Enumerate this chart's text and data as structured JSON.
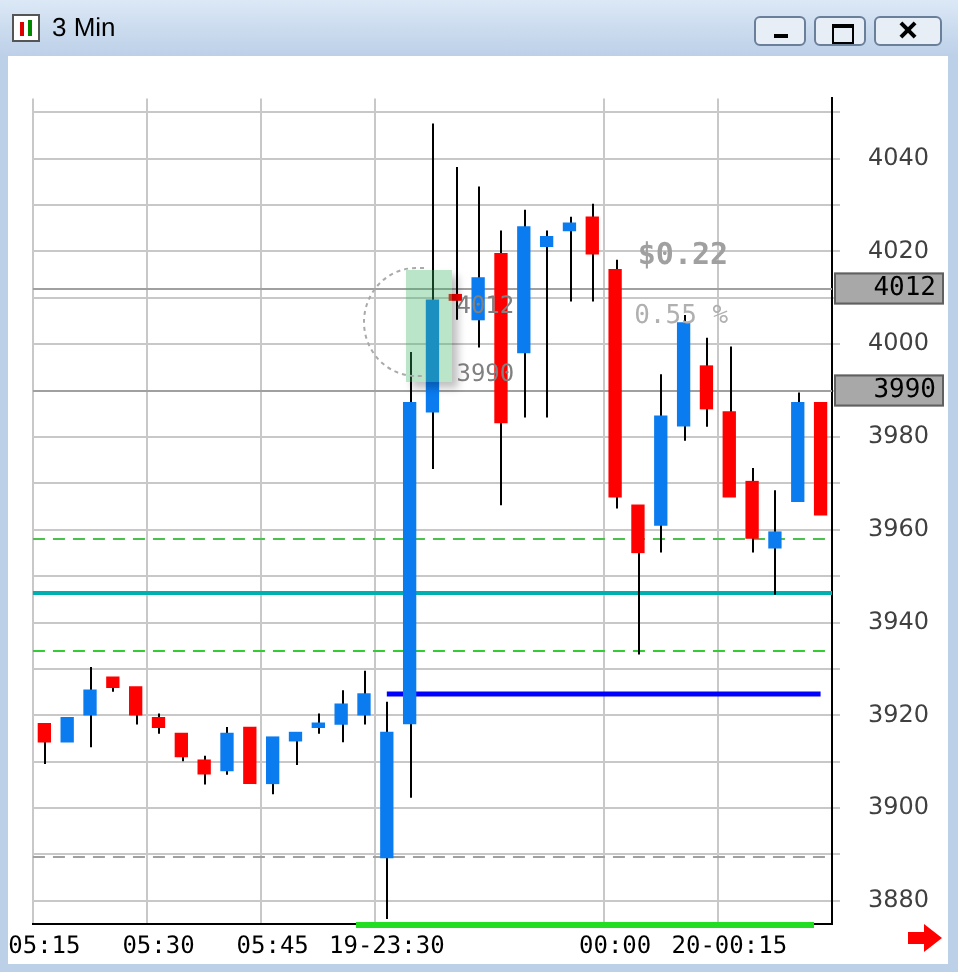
{
  "chart_data": {
    "type": "candlestick",
    "title": "3 Min",
    "categories": [
      "05:15",
      null,
      null,
      null,
      null,
      "05:30",
      null,
      null,
      null,
      null,
      "05:45",
      null,
      null,
      null,
      null,
      "19-23:30",
      null,
      null,
      null,
      null,
      null,
      null,
      null,
      null,
      null,
      "00:00",
      null,
      null,
      null,
      null,
      "20-00:15",
      null,
      null,
      null,
      null
    ],
    "ohlc": [
      [
        3918.2,
        3918.2,
        3909.5,
        3914.3
      ],
      [
        3914.3,
        3919.5,
        3914.3,
        3919.5
      ],
      [
        3920.1,
        3930.4,
        3913.1,
        3925.4
      ],
      [
        3928.2,
        3928.2,
        3925.1,
        3926.0
      ],
      [
        3926.1,
        3926.1,
        3918.0,
        3920.1
      ],
      [
        3919.5,
        3920.4,
        3916.0,
        3917.4
      ],
      [
        3916.1,
        3916.1,
        3910.1,
        3911.1
      ],
      [
        3910.3,
        3911.3,
        3905.1,
        3907.4
      ],
      [
        3908.1,
        3917.5,
        3907.2,
        3916.1
      ],
      [
        3917.4,
        3917.4,
        3905.3,
        3905.3
      ],
      [
        3905.3,
        3915.3,
        3903.0,
        3915.3
      ],
      [
        3914.5,
        3916.3,
        3909.3,
        3916.3
      ],
      [
        3917.4,
        3920.4,
        3916.0,
        3918.3
      ],
      [
        3918.1,
        3925.4,
        3914.2,
        3922.4
      ],
      [
        3920.1,
        3929.6,
        3918.0,
        3924.6
      ],
      [
        3889.3,
        3922.9,
        3876.1,
        3916.3
      ],
      [
        3918.2,
        3998.3,
        3902.2,
        3987.4
      ],
      [
        3985.4,
        4047.6,
        3973.1,
        4009.5
      ],
      [
        4010.7,
        4038.2,
        4005.3,
        4009.5
      ],
      [
        4005.3,
        4034.0,
        3999.3,
        4014.3
      ],
      [
        4019.5,
        4024.5,
        3965.3,
        3983.1
      ],
      [
        3998.2,
        4029.0,
        3984.2,
        4025.3
      ],
      [
        4021.1,
        4024.5,
        3984.2,
        4023.2
      ],
      [
        4024.5,
        4027.5,
        4009.2,
        4026.1
      ],
      [
        4027.4,
        4030.3,
        4009.2,
        4019.5
      ],
      [
        4016.1,
        4018.2,
        3964.6,
        3967.1
      ],
      [
        3965.3,
        3965.3,
        3933.1,
        3955.1
      ],
      [
        3961.0,
        3993.5,
        3955.1,
        3984.5
      ],
      [
        3982.4,
        4006.3,
        3979.2,
        4004.6
      ],
      [
        3995.3,
        4001.4,
        3982.2,
        3986.1
      ],
      [
        3985.4,
        3999.5,
        3967.1,
        3967.1
      ],
      [
        3970.4,
        3973.3,
        3955.1,
        3958.2
      ],
      [
        3956.1,
        3968.5,
        3946.0,
        3959.5
      ],
      [
        3966.1,
        3989.6,
        3966.1,
        3987.4
      ],
      [
        3987.4,
        3987.4,
        3963.2,
        3963.2
      ]
    ],
    "colors": [
      "#ff0000",
      "#0a7cf0",
      "#0a7cf0",
      "#ff0000",
      "#ff0000",
      "#ff0000",
      "#ff0000",
      "#ff0000",
      "#0a7cf0",
      "#ff0000",
      "#0a7cf0",
      "#0a7cf0",
      "#0a7cf0",
      "#0a7cf0",
      "#0a7cf0",
      "#0a7cf0",
      "#0a7cf0",
      "#0a7cf0",
      "#ff0000",
      "#0a7cf0",
      "#ff0000",
      "#0a7cf0",
      "#0a7cf0",
      "#0a7cf0",
      "#ff0000",
      "#ff0000",
      "#ff0000",
      "#0a7cf0",
      "#0a7cf0",
      "#ff0000",
      "#ff0000",
      "#ff0000",
      "#0a7cf0",
      "#0a7cf0",
      "#ff0000"
    ],
    "series": [
      {
        "type": "line",
        "color": "#0000ff",
        "values": [
          null,
          null,
          null,
          null,
          null,
          null,
          null,
          null,
          null,
          null,
          null,
          null,
          null,
          null,
          null,
          3924.6,
          3924.6,
          3924.6,
          3924.6,
          3924.6,
          3924.6,
          3924.6,
          3924.6,
          3924.6,
          3924.6,
          3924.6,
          3924.6,
          3924.6,
          3924.6,
          3924.6,
          3924.6,
          3924.6,
          3924.6,
          3924.6,
          3924.6
        ]
      }
    ],
    "ylim": [
      3875,
      4053
    ],
    "yticks": [
      3880,
      {
        "value": 3890,
        "label": null
      },
      3900,
      {
        "value": 3910,
        "label": null
      },
      3920,
      {
        "value": 3930,
        "label": null
      },
      3940,
      {
        "value": 3950,
        "label": null
      },
      3960,
      {
        "value": 3970,
        "label": null
      },
      3980,
      {
        "value": 3990,
        "label": null
      },
      4000,
      {
        "value": 4010,
        "label": null
      },
      4020,
      {
        "value": 4030,
        "label": null
      },
      4040,
      {
        "value": 4050,
        "label": null
      }
    ],
    "grid": true,
    "legend": false,
    "marker": "none",
    "ref_lines": [
      {
        "axis": "y",
        "value": 3958.4,
        "color": "#4cc04c",
        "line_style": "dashed"
      },
      {
        "axis": "y",
        "value": 3946.6,
        "color": "#00b0b0",
        "line_style": "solid"
      },
      {
        "axis": "y",
        "value": 3934.2,
        "color": "#33cc33",
        "line_style": "dashed"
      },
      {
        "axis": "y",
        "value": 3889.5,
        "color": "#a0a0a0",
        "line_style": "dashed"
      },
      {
        "axis": "y",
        "value": 4012,
        "label": "4012",
        "color": "#a0a0a0",
        "line_style": "solid"
      },
      {
        "axis": "y",
        "value": 3990,
        "label": "3990",
        "color": "#a0a0a0",
        "line_style": "solid"
      }
    ],
    "annotations": [
      "$0.22",
      "0.55 %",
      "4012",
      "3990"
    ]
  }
}
